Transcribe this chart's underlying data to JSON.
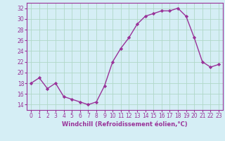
{
  "x": [
    0,
    1,
    2,
    3,
    4,
    5,
    6,
    7,
    8,
    9,
    10,
    11,
    12,
    13,
    14,
    15,
    16,
    17,
    18,
    19,
    20,
    21,
    22,
    23
  ],
  "y": [
    18,
    19,
    17,
    18,
    15.5,
    15,
    14.5,
    14,
    14.5,
    17.5,
    22,
    24.5,
    26.5,
    29,
    30.5,
    31,
    31.5,
    31.5,
    32,
    30.5,
    26.5,
    22,
    21,
    21.5
  ],
  "line_color": "#993399",
  "marker": "D",
  "marker_size": 2.2,
  "bg_color": "#d5eef5",
  "grid_color": "#b0d8c8",
  "xlabel": "Windchill (Refroidissement éolien,°C)",
  "xlabel_fontsize": 6.0,
  "xtick_labels": [
    "0",
    "1",
    "2",
    "3",
    "4",
    "5",
    "6",
    "7",
    "8",
    "9",
    "10",
    "11",
    "12",
    "13",
    "14",
    "15",
    "16",
    "17",
    "18",
    "19",
    "20",
    "21",
    "22",
    "23"
  ],
  "ytick_values": [
    14,
    16,
    18,
    20,
    22,
    24,
    26,
    28,
    30,
    32
  ],
  "ylim": [
    13,
    33
  ],
  "xlim": [
    -0.5,
    23.5
  ],
  "tick_fontsize": 5.5,
  "line_width": 1.0
}
